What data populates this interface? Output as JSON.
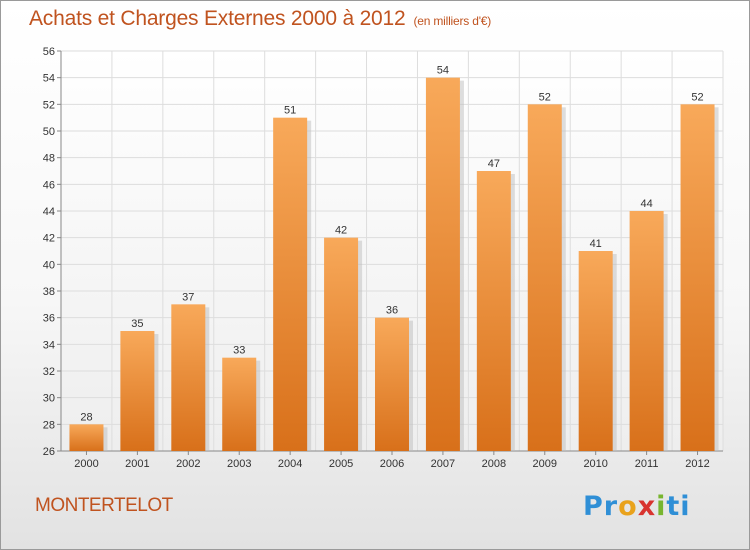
{
  "header": {
    "title": "Achats et Charges Externes 2000 à 2012",
    "unit": "(en milliers d'€)"
  },
  "footer": {
    "commune": "MONTERTELOT",
    "logo": [
      "P",
      "r",
      "o",
      "x",
      "i",
      "ti"
    ]
  },
  "colors": {
    "accent": "#c0531f",
    "bar_top": "#f8a95a",
    "bar_bottom": "#d8701a",
    "grid": "#dddddd"
  },
  "chart_data": {
    "type": "bar",
    "categories": [
      "2000",
      "2001",
      "2002",
      "2003",
      "2004",
      "2005",
      "2006",
      "2007",
      "2008",
      "2009",
      "2010",
      "2011",
      "2012"
    ],
    "values": [
      28,
      35,
      37,
      33,
      51,
      42,
      36,
      54,
      47,
      52,
      41,
      44,
      52
    ],
    "title": "Achats et Charges Externes 2000 à 2012",
    "xlabel": "",
    "ylabel": "",
    "ylim": [
      26,
      56
    ],
    "yticks": [
      26,
      28,
      30,
      32,
      34,
      36,
      38,
      40,
      42,
      44,
      46,
      48,
      50,
      52,
      54,
      56
    ],
    "grid": true,
    "data_labels": true
  }
}
